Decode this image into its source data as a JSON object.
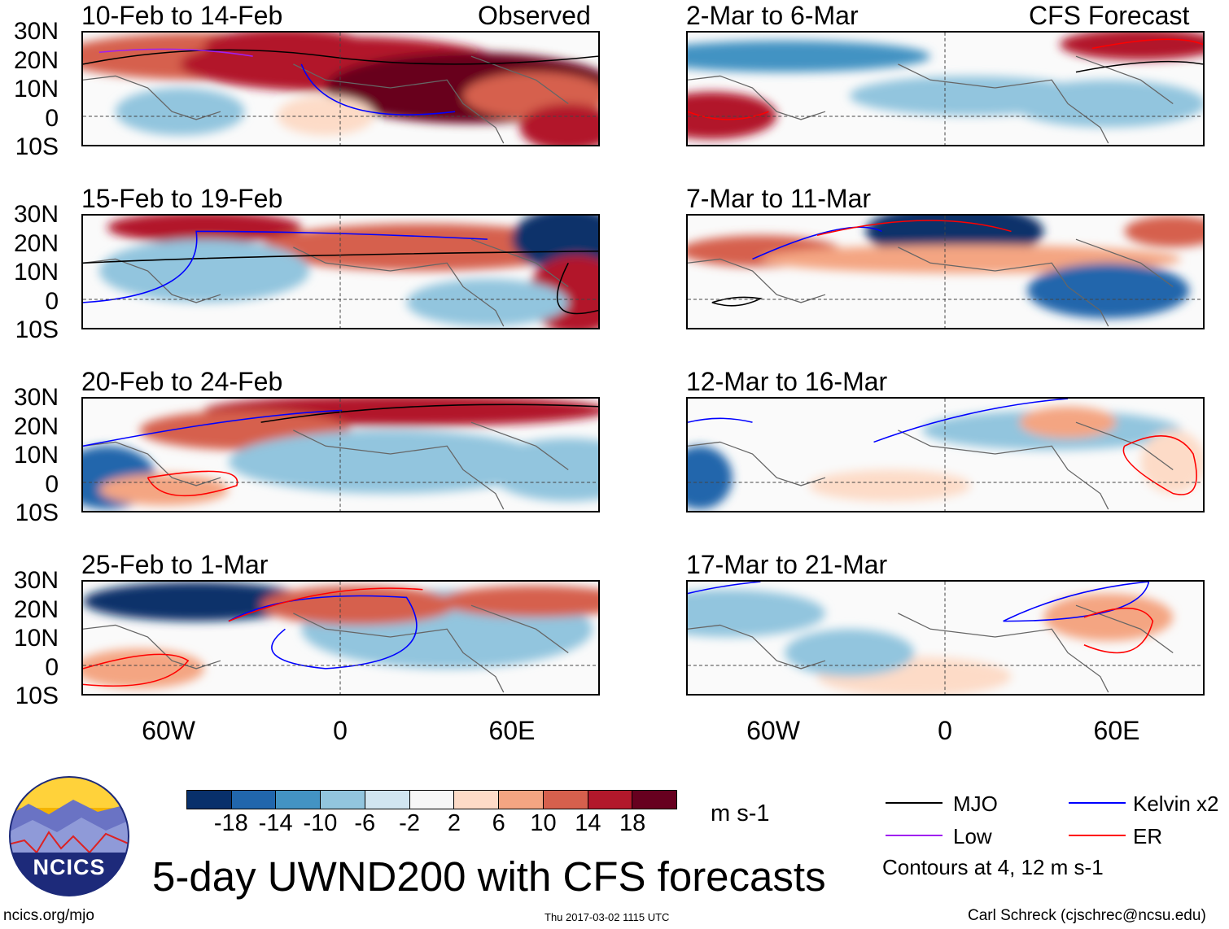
{
  "observed_label": "Observed",
  "forecast_label": "CFS Forecast",
  "lat_labels": [
    "30N",
    "20N",
    "10N",
    "0",
    "10S"
  ],
  "lon_labels": [
    "60W",
    "0",
    "60E"
  ],
  "panels_observed": [
    {
      "title": "10-Feb to 14-Feb"
    },
    {
      "title": "15-Feb to 19-Feb"
    },
    {
      "title": "20-Feb to 24-Feb"
    },
    {
      "title": "25-Feb to 1-Mar"
    }
  ],
  "panels_forecast": [
    {
      "title": "2-Mar to 6-Mar"
    },
    {
      "title": "7-Mar to 11-Mar"
    },
    {
      "title": "12-Mar to 16-Mar"
    },
    {
      "title": "17-Mar to 21-Mar"
    }
  ],
  "colorbar": {
    "colors": [
      "#08306b",
      "#2166ac",
      "#4393c3",
      "#92c5de",
      "#d1e5f0",
      "#f7f7f7",
      "#fddbc7",
      "#f4a582",
      "#d6604d",
      "#b2182b",
      "#67001f"
    ],
    "labels": [
      "-18",
      "-14",
      "-10",
      "-6",
      "-2",
      "2",
      "6",
      "10",
      "14",
      "18"
    ],
    "units": "m s-1"
  },
  "legend": {
    "items": [
      {
        "label": "MJO",
        "color": "#000000"
      },
      {
        "label": "Kelvin x2",
        "color": "#0000ff"
      },
      {
        "label": "Low",
        "color": "#a020f0"
      },
      {
        "label": "ER",
        "color": "#ff0000"
      }
    ],
    "note": "Contours at 4, 12 m s-1"
  },
  "logo_text": "NCICS",
  "title": "5-day UWND200 with CFS forecasts",
  "footer": {
    "left": "ncics.org/mjo",
    "center": "Thu 2017-03-02 1115 UTC",
    "right": "Carl Schreck (cjschrec@ncsu.edu)"
  }
}
